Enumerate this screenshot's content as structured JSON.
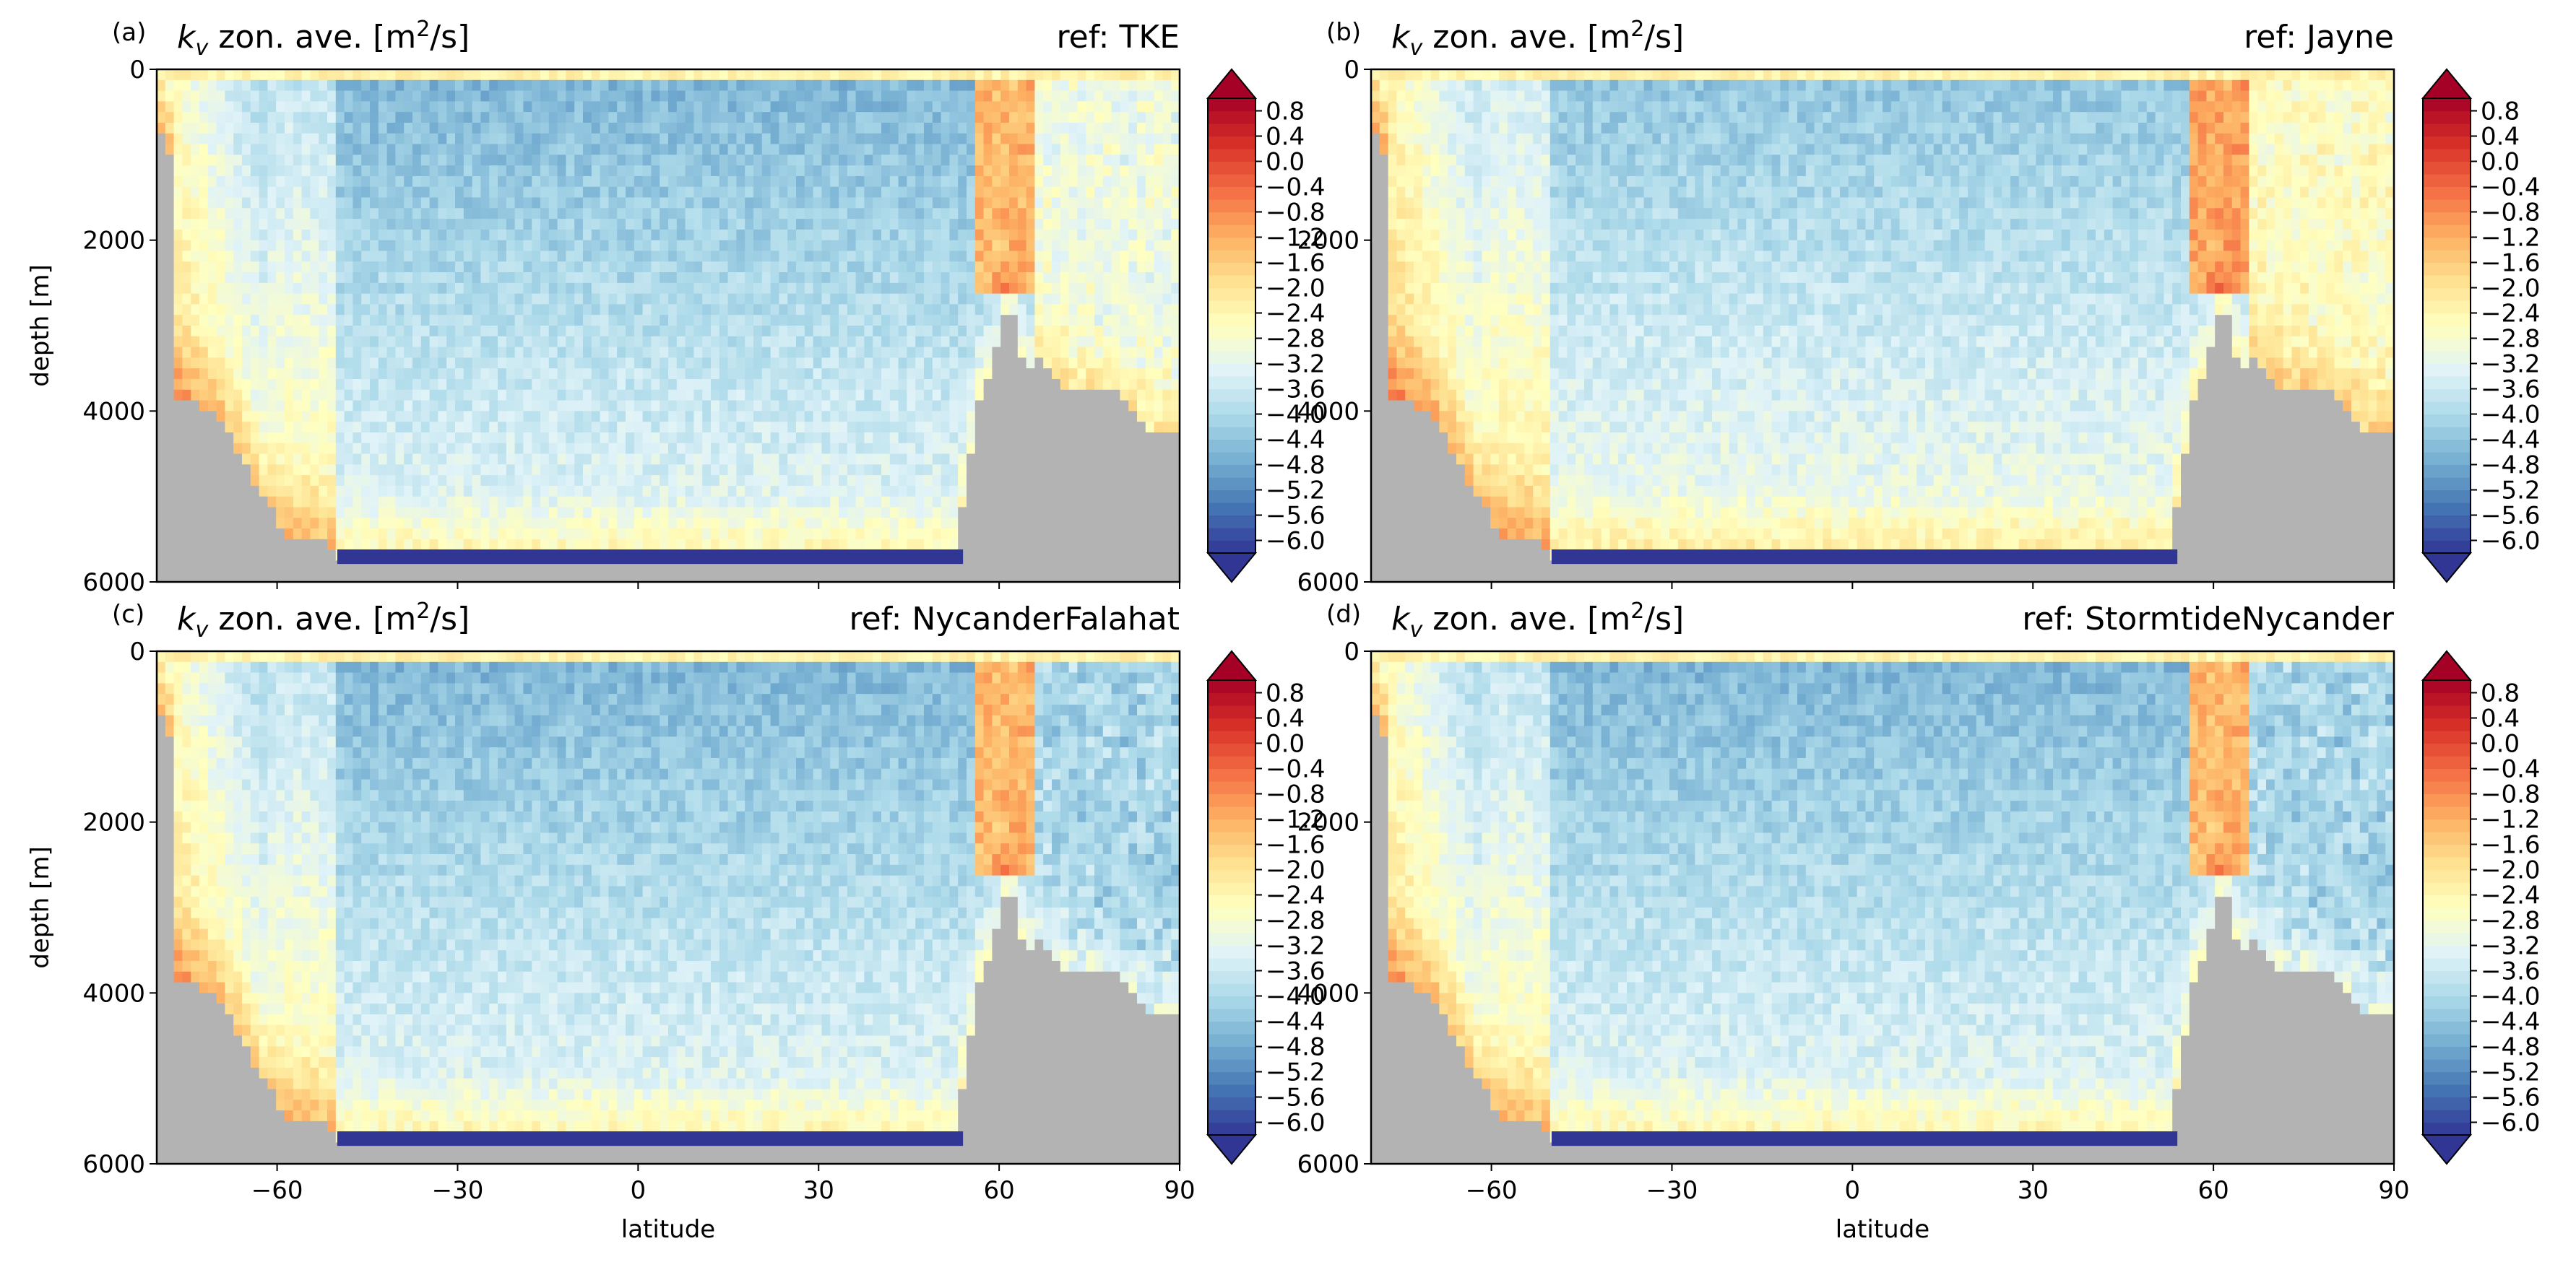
{
  "chart_data": [
    {
      "type": "heatmap",
      "panel_label": "(a)",
      "title_left_base": "k",
      "title_left_sub": "v",
      "title_left_rest": " zon. ave. [m",
      "title_left_sup": "2",
      "title_left_end": "/s]",
      "title_right": "ref: TKE",
      "ylabel": "depth [m]",
      "xlabel": "",
      "x_ticks": [
        -60,
        -30,
        0,
        30,
        60,
        90
      ],
      "x_ticklabels_shown": false,
      "y_ticks": [
        0,
        2000,
        4000,
        6000
      ],
      "xlim": [
        -80,
        90
      ],
      "ylim": [
        6000,
        0
      ],
      "colorbar": {
        "ticks": [
          0.8,
          0.4,
          0.0,
          -0.4,
          -0.8,
          -1.2,
          -1.6,
          -2.0,
          -2.4,
          -2.8,
          -3.2,
          -3.6,
          -4.0,
          -4.4,
          -4.8,
          -5.2,
          -5.6,
          -6.0
        ],
        "extend": "both",
        "cmap": "RdYlBu_r"
      },
      "land_color": "#b3b3b3"
    },
    {
      "type": "heatmap",
      "panel_label": "(b)",
      "title_left_base": "k",
      "title_left_sub": "v",
      "title_left_rest": " zon. ave. [m",
      "title_left_sup": "2",
      "title_left_end": "/s]",
      "title_right": "ref: Jayne",
      "ylabel": "",
      "xlabel": "",
      "x_ticks": [
        -60,
        -30,
        0,
        30,
        60,
        90
      ],
      "x_ticklabels_shown": false,
      "y_ticks": [
        0,
        2000,
        4000,
        6000
      ],
      "xlim": [
        -80,
        90
      ],
      "ylim": [
        6000,
        0
      ],
      "colorbar": {
        "ticks": [
          0.8,
          0.4,
          0.0,
          -0.4,
          -0.8,
          -1.2,
          -1.6,
          -2.0,
          -2.4,
          -2.8,
          -3.2,
          -3.6,
          -4.0,
          -4.4,
          -4.8,
          -5.2,
          -5.6,
          -6.0
        ],
        "extend": "both",
        "cmap": "RdYlBu_r"
      },
      "land_color": "#b3b3b3"
    },
    {
      "type": "heatmap",
      "panel_label": "(c)",
      "title_left_base": "k",
      "title_left_sub": "v",
      "title_left_rest": " zon. ave. [m",
      "title_left_sup": "2",
      "title_left_end": "/s]",
      "title_right": "ref: NycanderFalahat",
      "ylabel": "depth [m]",
      "xlabel": "latitude",
      "x_ticks": [
        -60,
        -30,
        0,
        30,
        60,
        90
      ],
      "x_ticklabels_shown": true,
      "y_ticks": [
        0,
        2000,
        4000,
        6000
      ],
      "xlim": [
        -80,
        90
      ],
      "ylim": [
        6000,
        0
      ],
      "colorbar": {
        "ticks": [
          0.8,
          0.4,
          0.0,
          -0.4,
          -0.8,
          -1.2,
          -1.6,
          -2.0,
          -2.4,
          -2.8,
          -3.2,
          -3.6,
          -4.0,
          -4.4,
          -4.8,
          -5.2,
          -5.6,
          -6.0
        ],
        "extend": "both",
        "cmap": "RdYlBu_r"
      },
      "land_color": "#b3b3b3"
    },
    {
      "type": "heatmap",
      "panel_label": "(d)",
      "title_left_base": "k",
      "title_left_sub": "v",
      "title_left_rest": " zon. ave. [m",
      "title_left_sup": "2",
      "title_left_end": "/s]",
      "title_right": "ref: StormtideNycander",
      "ylabel": "",
      "xlabel": "latitude",
      "x_ticks": [
        -60,
        -30,
        0,
        30,
        60,
        90
      ],
      "x_ticklabels_shown": true,
      "y_ticks": [
        0,
        2000,
        4000,
        6000
      ],
      "xlim": [
        -80,
        90
      ],
      "ylim": [
        6000,
        0
      ],
      "colorbar": {
        "ticks": [
          0.8,
          0.4,
          0.0,
          -0.4,
          -0.8,
          -1.2,
          -1.6,
          -2.0,
          -2.4,
          -2.8,
          -3.2,
          -3.6,
          -4.0,
          -4.4,
          -4.8,
          -5.2,
          -5.6,
          -6.0
        ],
        "extend": "both",
        "cmap": "RdYlBu_r"
      },
      "land_color": "#b3b3b3"
    }
  ]
}
